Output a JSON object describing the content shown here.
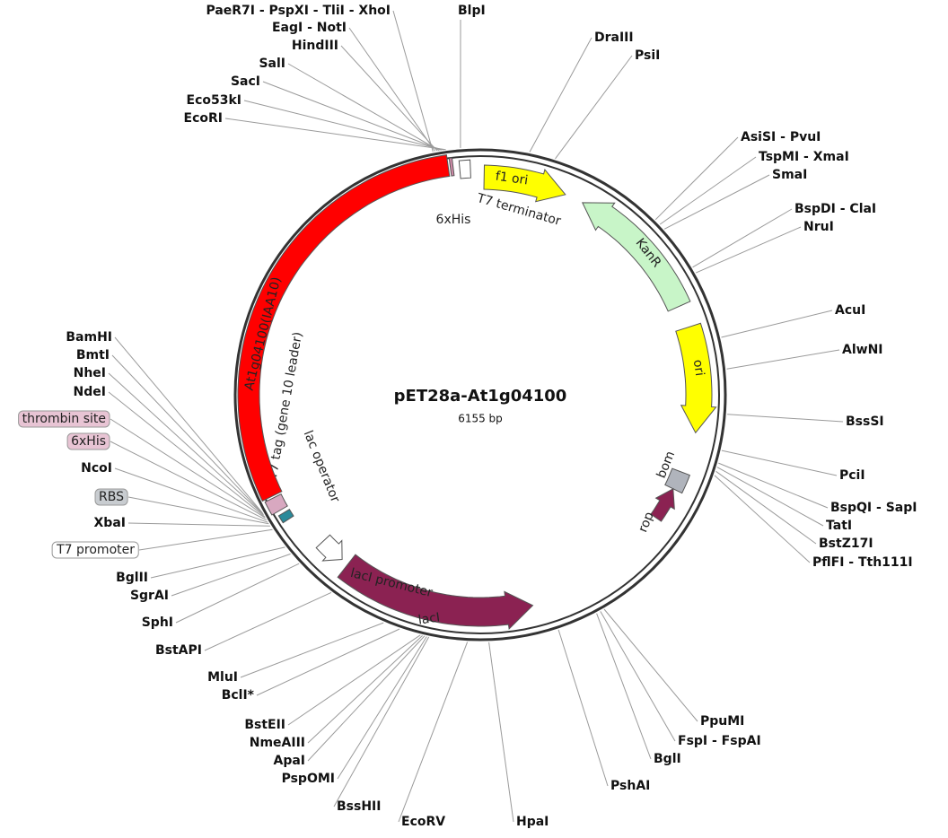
{
  "plasmid": {
    "name": "pET28a-At1g04100",
    "size": "6155 bp"
  },
  "features": [
    {
      "label": "f1 ori",
      "color": "#ffff00"
    },
    {
      "label": "KanR",
      "color": "#c8f5c8"
    },
    {
      "label": "ori",
      "color": "#ffff00"
    },
    {
      "label": "bom",
      "color": "#b0b4bc"
    },
    {
      "label": "rop",
      "color": "#8b2252"
    },
    {
      "label": "lacI",
      "color": "#8b2252"
    },
    {
      "label": "lacI promoter",
      "color": "#ffffff"
    },
    {
      "label": "lac operator",
      "color": "#2a8a9a"
    },
    {
      "label": "T7 tag (gene 10 leader)",
      "color": "#d8a8c0"
    },
    {
      "label": "At1g04100(IAA10)",
      "color": "#ff0000"
    },
    {
      "label": "6xHis",
      "color": "#d08aa8"
    },
    {
      "label": "T7 terminator",
      "color": "#ffffff"
    }
  ],
  "tags": [
    {
      "label": "thrombin site",
      "color": "#e8c4d4"
    },
    {
      "label": "6xHis",
      "color": "#e8c4d4"
    },
    {
      "label": "RBS",
      "color": "#c8ccd0"
    },
    {
      "label": "T7 promoter",
      "color": "#ffffff"
    }
  ],
  "enzymes": [
    {
      "label": "PaeR7I - PspXI - TliI - XhoI"
    },
    {
      "label": "EagI - NotI"
    },
    {
      "label": "HindIII"
    },
    {
      "label": "SalI"
    },
    {
      "label": "SacI"
    },
    {
      "label": "Eco53kI"
    },
    {
      "label": "EcoRI"
    },
    {
      "label": "BlpI"
    },
    {
      "label": "DraIII"
    },
    {
      "label": "PsiI"
    },
    {
      "label": "AsiSI - PvuI"
    },
    {
      "label": "TspMI - XmaI"
    },
    {
      "label": "SmaI"
    },
    {
      "label": "BspDI - ClaI"
    },
    {
      "label": "NruI"
    },
    {
      "label": "AcuI"
    },
    {
      "label": "AlwNI"
    },
    {
      "label": "BssSI"
    },
    {
      "label": "PciI"
    },
    {
      "label": "BspQI - SapI"
    },
    {
      "label": "TatI"
    },
    {
      "label": "BstZ17I"
    },
    {
      "label": "PflFI - Tth111I"
    },
    {
      "label": "PpuMI"
    },
    {
      "label": "FspI - FspAI"
    },
    {
      "label": "BglI"
    },
    {
      "label": "PshAI"
    },
    {
      "label": "HpaI"
    },
    {
      "label": "EcoRV"
    },
    {
      "label": "BssHII"
    },
    {
      "label": "PspOMI"
    },
    {
      "label": "ApaI"
    },
    {
      "label": "NmeAIII"
    },
    {
      "label": "BstEII"
    },
    {
      "label": "BclI*",
      "color": "#888888"
    },
    {
      "label": "MluI"
    },
    {
      "label": "BstAPI"
    },
    {
      "label": "SphI"
    },
    {
      "label": "SgrAI"
    },
    {
      "label": "BglII"
    },
    {
      "label": "XbaI"
    },
    {
      "label": "NcoI"
    },
    {
      "label": "NdeI"
    },
    {
      "label": "NheI"
    },
    {
      "label": "BmtI"
    },
    {
      "label": "BamHI"
    }
  ]
}
